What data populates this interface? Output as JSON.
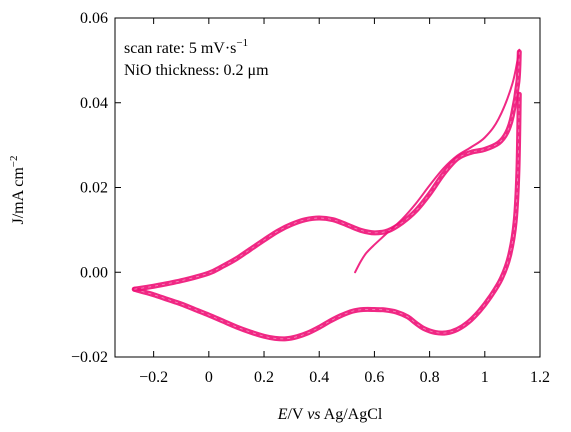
{
  "chart_data": {
    "type": "line",
    "xlabel": {
      "prefix": "E",
      "mid": "/V ",
      "italic": "vs",
      "suffix": " Ag/AgCl"
    },
    "ylabel": {
      "main": "J/mA cm",
      "sup": "−2"
    },
    "xlim": [
      -0.34,
      1.2
    ],
    "ylim": [
      -0.02,
      0.06
    ],
    "x_ticks": [
      {
        "value": -0.2,
        "label": "−0.2"
      },
      {
        "value": 0.0,
        "label": "0"
      },
      {
        "value": 0.2,
        "label": "0.2"
      },
      {
        "value": 0.4,
        "label": "0.4"
      },
      {
        "value": 0.6,
        "label": "0.6"
      },
      {
        "value": 0.8,
        "label": "0.8"
      },
      {
        "value": 1.0,
        "label": "1"
      },
      {
        "value": 1.2,
        "label": "1.2"
      }
    ],
    "y_ticks": [
      {
        "value": -0.02,
        "label": "−0.02"
      },
      {
        "value": 0.0,
        "label": "0.00"
      },
      {
        "value": 0.02,
        "label": "0.02"
      },
      {
        "value": 0.04,
        "label": "0.04"
      },
      {
        "value": 0.06,
        "label": "0.06"
      }
    ],
    "annotations": [
      {
        "text": "scan rate: 5 mV·s",
        "sup": "−1"
      },
      {
        "text": "NiO thickness: 0.2 μm",
        "sup": ""
      }
    ],
    "grid": false,
    "series_color": "#ee1177",
    "series": [
      {
        "segment": "initial-sweep",
        "x": [
          0.53,
          0.55,
          0.57,
          0.6,
          0.65,
          0.7,
          0.75,
          0.8,
          0.85,
          0.9,
          0.95,
          1.0,
          1.05,
          1.1,
          1.125
        ],
        "y": [
          0.0,
          0.0025,
          0.0045,
          0.0065,
          0.0095,
          0.0125,
          0.0162,
          0.0205,
          0.0245,
          0.0275,
          0.0295,
          0.0318,
          0.0362,
          0.0445,
          0.0525
        ]
      },
      {
        "segment": "return-sweep",
        "x": [
          1.125,
          1.12,
          1.11,
          1.09,
          1.06,
          1.02,
          0.98,
          0.94,
          0.9,
          0.86,
          0.82,
          0.78,
          0.75,
          0.72,
          0.68,
          0.64,
          0.6,
          0.56,
          0.52,
          0.48,
          0.44,
          0.4,
          0.36,
          0.32,
          0.28,
          0.24,
          0.2,
          0.15,
          0.1,
          0.05,
          0.0,
          -0.05,
          -0.1,
          -0.15,
          -0.2,
          -0.25,
          -0.27
        ],
        "y": [
          0.042,
          0.024,
          0.012,
          0.004,
          -0.0015,
          -0.0058,
          -0.0092,
          -0.0118,
          -0.0135,
          -0.0143,
          -0.0142,
          -0.0133,
          -0.012,
          -0.0105,
          -0.0094,
          -0.0089,
          -0.0088,
          -0.0088,
          -0.0092,
          -0.0102,
          -0.0115,
          -0.013,
          -0.0143,
          -0.0152,
          -0.0157,
          -0.0156,
          -0.0151,
          -0.0141,
          -0.0129,
          -0.0115,
          -0.0101,
          -0.0088,
          -0.0075,
          -0.0064,
          -0.0053,
          -0.0044,
          -0.004
        ]
      },
      {
        "segment": "forward-sweep",
        "x": [
          -0.27,
          -0.2,
          -0.1,
          0.0,
          0.05,
          0.1,
          0.15,
          0.2,
          0.25,
          0.3,
          0.35,
          0.4,
          0.45,
          0.5,
          0.55,
          0.6,
          0.65,
          0.7,
          0.75,
          0.8,
          0.85,
          0.9,
          0.95,
          1.0,
          1.05,
          1.08,
          1.1,
          1.12,
          1.125
        ],
        "y": [
          -0.004,
          -0.0033,
          -0.002,
          -0.0002,
          0.0014,
          0.0032,
          0.0054,
          0.0076,
          0.0097,
          0.0113,
          0.0124,
          0.0128,
          0.0124,
          0.0112,
          0.0099,
          0.0093,
          0.0098,
          0.0117,
          0.0145,
          0.0185,
          0.0232,
          0.0268,
          0.0283,
          0.029,
          0.0305,
          0.033,
          0.037,
          0.045,
          0.052
        ]
      }
    ]
  }
}
